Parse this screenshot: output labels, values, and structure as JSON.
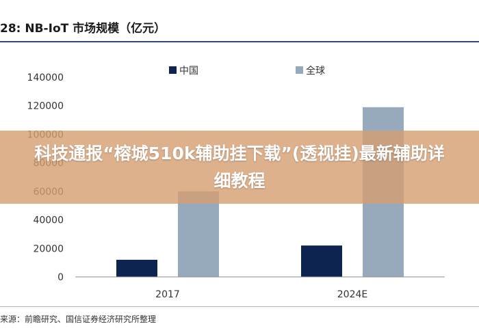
{
  "figure": {
    "title": "28:  NB-IoT 市场规模（亿元）",
    "source": "来源：前瞻研究、国信证券经济研究所整理"
  },
  "banner": {
    "text": "科技通报“榕城510k辅助挂下载”(透视挂)最新辅助详细教程"
  },
  "chart_data": {
    "type": "bar",
    "title": "NB-IoT 市场规模（亿元）",
    "categories": [
      "2017",
      "2024E"
    ],
    "series": [
      {
        "name": "中国",
        "values": [
          12000,
          22000
        ],
        "color": "#0d2350"
      },
      {
        "name": "全球",
        "values": [
          60000,
          119000
        ],
        "color": "#97a9bd"
      }
    ],
    "yticks": [
      0,
      20000,
      40000,
      60000,
      80000,
      100000,
      120000,
      140000
    ],
    "ylim": [
      0,
      140000
    ],
    "legend": "top-center",
    "grid": false
  }
}
